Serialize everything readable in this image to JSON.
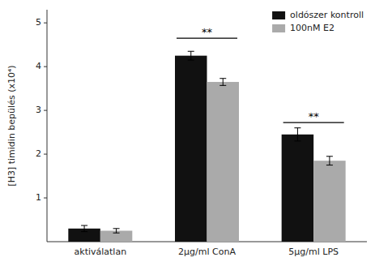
{
  "chart_data": {
    "type": "bar",
    "ylabel": "[H3] timidin bepülés (x10⁴)",
    "categories": [
      "aktiválatlan",
      "2μg/ml ConA",
      "5μg/ml LPS"
    ],
    "series": [
      {
        "name": "oldószer kontroll",
        "color": "#111111",
        "values": [
          0.3,
          4.25,
          2.45
        ],
        "errors": [
          0.07,
          0.1,
          0.15
        ]
      },
      {
        "name": "100nM E2",
        "color": "#aaaaaa",
        "values": [
          0.25,
          3.65,
          1.85
        ],
        "errors": [
          0.05,
          0.08,
          0.1
        ]
      }
    ],
    "ylim": [
      0,
      5.3
    ],
    "yticks": [
      1,
      2,
      3,
      4,
      5
    ],
    "legend": "upper right",
    "annotations": [
      {
        "text": "**",
        "category": 1,
        "y": 4.65
      },
      {
        "text": "**",
        "category": 2,
        "y": 2.72
      }
    ]
  }
}
